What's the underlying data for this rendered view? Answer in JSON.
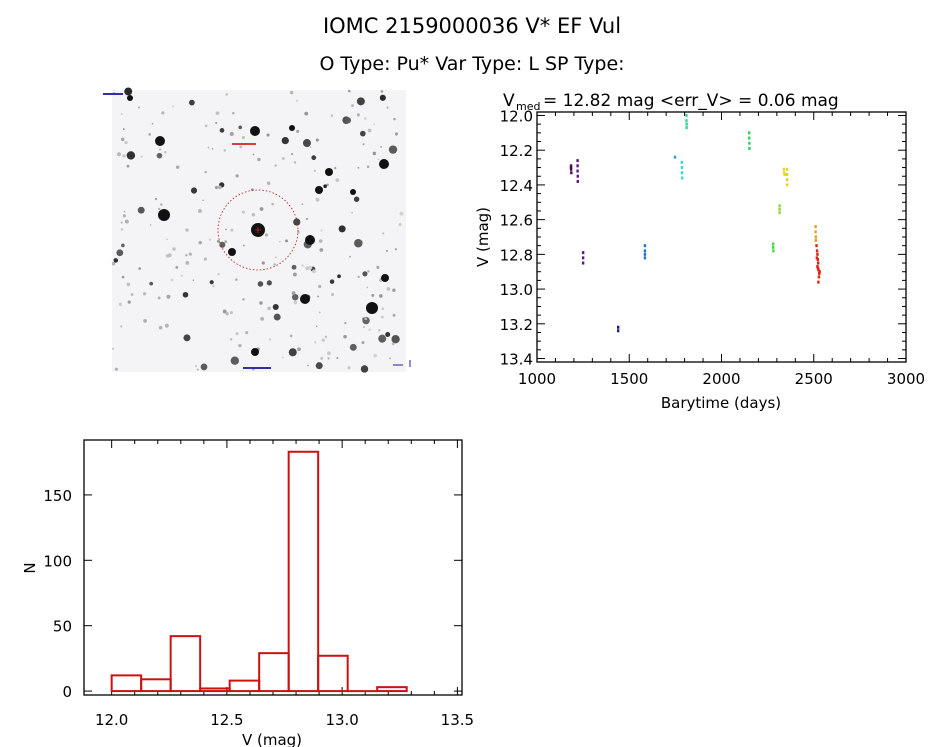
{
  "header": {
    "title": "IOMC 2159000036    V* EF Vul",
    "subtitle": "O Type: Pu*  Var Type: L   SP Type:"
  },
  "chart_data": [
    {
      "type": "image",
      "title": "",
      "description_labels": []
    },
    {
      "type": "scatter",
      "title": "V_med = 12.82 mag <err_V> = 0.06 mag",
      "title_main": "V",
      "title_sub": "med",
      "title_rest": " = 12.82 mag <err_V> = 0.06 mag",
      "xlabel": "Barytime (days)",
      "ylabel": "V (mag)",
      "xlim": [
        1000,
        3000
      ],
      "ylim": [
        13.42,
        11.98
      ],
      "y_inverted": true,
      "xticks": [
        "1000",
        "1500",
        "2000",
        "2500",
        "3000"
      ],
      "yticks": [
        "12.0",
        "12.2",
        "12.4",
        "12.6",
        "12.8",
        "13.0",
        "13.2",
        "13.4"
      ],
      "series": [
        {
          "color": "#4a0858",
          "points": [
            [
              1185,
              12.29
            ],
            [
              1185,
              12.31
            ],
            [
              1186,
              12.33
            ],
            [
              1184,
              12.3
            ]
          ]
        },
        {
          "color": "#5c1a80",
          "points": [
            [
              1220,
              12.26
            ],
            [
              1220,
              12.29
            ],
            [
              1220,
              12.32
            ],
            [
              1221,
              12.35
            ],
            [
              1221,
              12.38
            ]
          ]
        },
        {
          "color": "#5c1a80",
          "points": [
            [
              1250,
              12.79
            ],
            [
              1250,
              12.82
            ],
            [
              1250,
              12.85
            ]
          ]
        },
        {
          "color": "#1a1a90",
          "points": [
            [
              1440,
              13.22
            ],
            [
              1440,
              13.24
            ]
          ]
        },
        {
          "color": "#1f70d0",
          "points": [
            [
              1585,
              12.75
            ],
            [
              1585,
              12.78
            ],
            [
              1585,
              12.8
            ],
            [
              1585,
              12.82
            ]
          ]
        },
        {
          "color": "#2aa0d8",
          "points": [
            [
              1748,
              12.24
            ]
          ]
        },
        {
          "color": "#30d8e0",
          "points": [
            [
              1785,
              12.27
            ],
            [
              1786,
              12.3
            ],
            [
              1786,
              12.33
            ],
            [
              1787,
              12.36
            ]
          ]
        },
        {
          "color": "#30d890",
          "points": [
            [
              1810,
              12.0
            ],
            [
              1810,
              12.03
            ],
            [
              1811,
              12.05
            ],
            [
              1811,
              12.07
            ]
          ]
        },
        {
          "color": "#30d060",
          "points": [
            [
              2150,
              12.1
            ],
            [
              2150,
              12.13
            ],
            [
              2151,
              12.16
            ],
            [
              2151,
              12.19
            ]
          ]
        },
        {
          "color": "#40d840",
          "points": [
            [
              2280,
              12.74
            ],
            [
              2280,
              12.76
            ],
            [
              2281,
              12.78
            ]
          ]
        },
        {
          "color": "#90d840",
          "points": [
            [
              2315,
              12.52
            ],
            [
              2315,
              12.54
            ],
            [
              2315,
              12.56
            ]
          ]
        },
        {
          "color": "#d8e020",
          "points": [
            [
              2338,
              12.31
            ],
            [
              2340,
              12.33
            ],
            [
              2342,
              12.34
            ]
          ]
        },
        {
          "color": "#e8d020",
          "points": [
            [
              2355,
              12.31
            ],
            [
              2355,
              12.34
            ],
            [
              2356,
              12.37
            ],
            [
              2356,
              12.4
            ]
          ]
        },
        {
          "color": "#e0a020",
          "points": [
            [
              2510,
              12.64
            ],
            [
              2510,
              12.67
            ],
            [
              2511,
              12.7
            ],
            [
              2511,
              12.72
            ]
          ]
        },
        {
          "color": "#e02010",
          "points": [
            [
              2515,
              12.75
            ],
            [
              2518,
              12.78
            ],
            [
              2520,
              12.8
            ],
            [
              2522,
              12.83
            ],
            [
              2524,
              12.85
            ],
            [
              2520,
              12.87
            ],
            [
              2526,
              12.89
            ],
            [
              2530,
              12.91
            ],
            [
              2528,
              12.93
            ],
            [
              2532,
              12.9
            ],
            [
              2525,
              12.96
            ],
            [
              2517,
              12.82
            ],
            [
              2523,
              12.88
            ]
          ]
        }
      ]
    },
    {
      "type": "bar",
      "subtype": "histogram",
      "xlabel": "V (mag)",
      "ylabel": "N",
      "xlim": [
        11.88,
        13.52
      ],
      "ylim": [
        -3,
        192
      ],
      "xticks": [
        "12.0",
        "12.5",
        "13.0",
        "13.5"
      ],
      "yticks": [
        "0",
        "50",
        "100",
        "150"
      ],
      "bin_edges": [
        12.0,
        12.128,
        12.256,
        12.384,
        12.512,
        12.64,
        12.768,
        12.896,
        13.024,
        13.152,
        13.28
      ],
      "values": [
        12,
        9,
        42,
        2,
        8,
        29,
        183,
        27,
        0,
        3
      ],
      "color": "#cc1111"
    }
  ]
}
